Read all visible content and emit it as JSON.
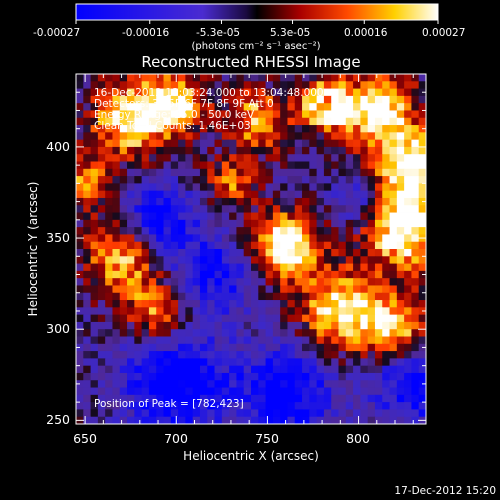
{
  "colorbar": {
    "tick_labels": [
      "-0.00027",
      "-0.00016",
      "-5.3e-05",
      "5.3e-05",
      "0.00016",
      "0.00027"
    ],
    "range": [
      -0.00027,
      0.00027
    ],
    "units_label": "(photons cm⁻² s⁻¹ asec⁻²)"
  },
  "chart_data": {
    "type": "heatmap",
    "title": "Reconstructed RHESSI Image",
    "xlabel": "Heliocentric X (arcsec)",
    "ylabel": "Heliocentric Y (arcsec)",
    "xlim": [
      645,
      837
    ],
    "ylim": [
      248,
      440
    ],
    "x_ticks": [
      650,
      700,
      750,
      800
    ],
    "y_ticks": [
      250,
      300,
      350,
      400
    ],
    "annotations": [
      "16-Dec-2012 13:03:24.000 to 13:04:48.000",
      "Detectors: 3F 5F 6F 7F 8F 9F  Att 0",
      "Energy Range: 25.0 - 50.0 keV",
      "Clean    Total Counts: 1.46E+03"
    ],
    "peak_label": "Position of Peak = [782,423]",
    "peak": [
      782,
      423
    ],
    "colormap": "blue-purple-black-red-yellow-white",
    "grid": false,
    "grid_size": [
      48,
      48
    ],
    "emission_regions": [
      {
        "x": 675,
        "y": 415,
        "sigma": 15,
        "amp": 1.1
      },
      {
        "x": 700,
        "y": 425,
        "sigma": 12,
        "amp": 1.0
      },
      {
        "x": 745,
        "y": 415,
        "sigma": 12,
        "amp": 0.9
      },
      {
        "x": 782,
        "y": 423,
        "sigma": 9,
        "amp": 1.4
      },
      {
        "x": 810,
        "y": 420,
        "sigma": 14,
        "amp": 1.2
      },
      {
        "x": 830,
        "y": 390,
        "sigma": 14,
        "amp": 1.2
      },
      {
        "x": 825,
        "y": 355,
        "sigma": 16,
        "amp": 1.3
      },
      {
        "x": 760,
        "y": 345,
        "sigma": 13,
        "amp": 1.4
      },
      {
        "x": 790,
        "y": 310,
        "sigma": 15,
        "amp": 1.2
      },
      {
        "x": 820,
        "y": 300,
        "sigma": 12,
        "amp": 1.1
      },
      {
        "x": 670,
        "y": 340,
        "sigma": 14,
        "amp": 1.0
      },
      {
        "x": 690,
        "y": 310,
        "sigma": 12,
        "amp": 0.9
      },
      {
        "x": 730,
        "y": 380,
        "sigma": 10,
        "amp": 0.7
      },
      {
        "x": 650,
        "y": 380,
        "sigma": 10,
        "amp": 0.8
      }
    ],
    "negative_regions": [
      {
        "x": 700,
        "y": 270,
        "sigma": 20,
        "amp": 1.1
      },
      {
        "x": 760,
        "y": 265,
        "sigma": 18,
        "amp": 1.0
      },
      {
        "x": 690,
        "y": 360,
        "sigma": 14,
        "amp": 0.9
      },
      {
        "x": 720,
        "y": 330,
        "sigma": 16,
        "amp": 0.8
      },
      {
        "x": 830,
        "y": 270,
        "sigma": 16,
        "amp": 0.9
      },
      {
        "x": 800,
        "y": 370,
        "sigma": 10,
        "amp": 0.6
      }
    ]
  },
  "footer": {
    "timestamp": "17-Dec-2012 15:20"
  }
}
